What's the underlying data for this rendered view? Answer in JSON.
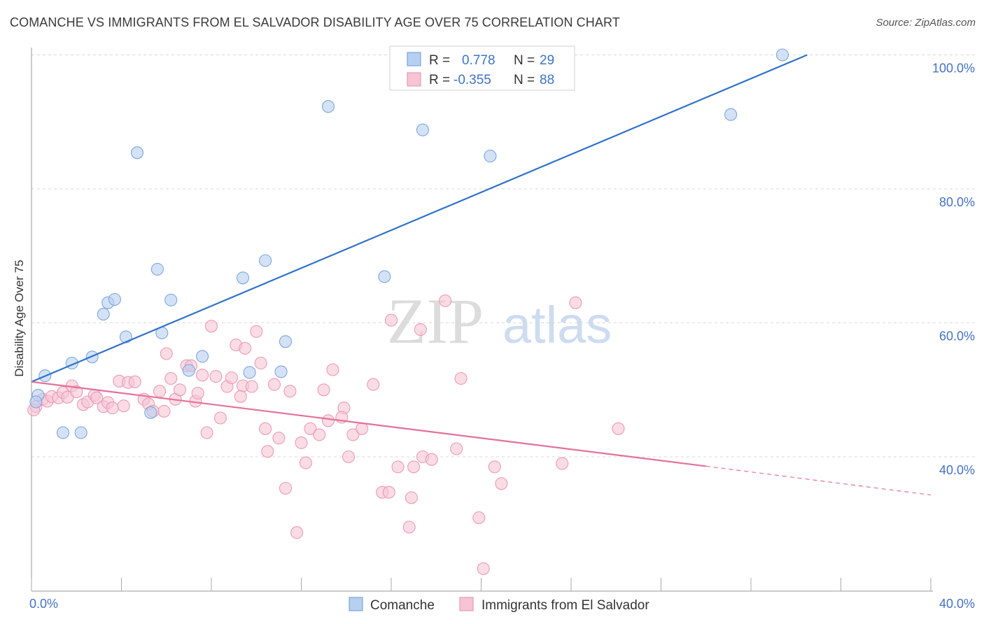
{
  "title": "COMANCHE VS IMMIGRANTS FROM EL SALVADOR DISABILITY AGE OVER 75 CORRELATION CHART",
  "source": "Source: ZipAtlas.com",
  "watermark": {
    "zip": "ZIP",
    "atlas": "atlas"
  },
  "colors": {
    "blue_line": "#2f72c8",
    "blue_fill": "#b7cff0",
    "blue_stroke": "#7da6dd",
    "pink_line": "#e5709a",
    "pink_fill": "#f6c4d4",
    "pink_stroke": "#ec9ab6",
    "grid": "#d9d9d9",
    "tick_label": "#4472c4"
  },
  "legend": {
    "rows": [
      {
        "r_label": "R =",
        "r_value": "0.778",
        "n_label": "N =",
        "n_value": "29"
      },
      {
        "r_label": "R =",
        "r_value": "-0.355",
        "n_label": "N =",
        "n_value": "88"
      }
    ]
  },
  "bottom_legend": [
    "Comanche",
    "Immigrants from El Salvador"
  ],
  "chart_data": {
    "type": "scatter",
    "title": "COMANCHE VS IMMIGRANTS FROM EL SALVADOR DISABILITY AGE OVER 75 CORRELATION CHART",
    "xlabel": "",
    "ylabel": "Disability Age Over 75",
    "xlim": [
      0,
      40
    ],
    "ylim": [
      20,
      102
    ],
    "x_tick_labels": [
      "0.0%",
      "40.0%"
    ],
    "y_tick_labels": [
      "40.0%",
      "60.0%",
      "80.0%",
      "100.0%"
    ],
    "y_ticks": [
      40,
      60,
      80,
      100
    ],
    "grid": true,
    "legend_placement": "top-center",
    "series": [
      {
        "name": "Comanche",
        "r": 0.778,
        "n": 29,
        "trend": {
          "x": [
            0,
            34.5
          ],
          "y": [
            51.2,
            100
          ]
        },
        "points": [
          [
            0.3,
            49.2
          ],
          [
            0.6,
            52.1
          ],
          [
            1.8,
            54.0
          ],
          [
            2.7,
            54.9
          ],
          [
            3.2,
            61.3
          ],
          [
            3.4,
            63.0
          ],
          [
            3.7,
            63.5
          ],
          [
            4.2,
            57.9
          ],
          [
            4.7,
            85.4
          ],
          [
            5.3,
            46.6
          ],
          [
            5.6,
            68.0
          ],
          [
            5.8,
            58.5
          ],
          [
            6.2,
            63.4
          ],
          [
            7.0,
            52.9
          ],
          [
            7.6,
            55.0
          ],
          [
            9.4,
            66.7
          ],
          [
            9.7,
            52.6
          ],
          [
            10.4,
            69.3
          ],
          [
            11.1,
            52.7
          ],
          [
            11.3,
            57.2
          ],
          [
            13.2,
            92.3
          ],
          [
            15.7,
            66.9
          ],
          [
            17.4,
            88.8
          ],
          [
            20.4,
            84.9
          ],
          [
            31.1,
            91.1
          ],
          [
            33.4,
            100.0
          ],
          [
            1.4,
            43.6
          ],
          [
            2.2,
            43.6
          ],
          [
            0.2,
            48.2
          ]
        ]
      },
      {
        "name": "Immigrants from El Salvador",
        "r": -0.355,
        "n": 88,
        "trend": {
          "x": [
            0,
            30.0
          ],
          "y": [
            51.2,
            38.6
          ]
        },
        "trend_dashed": {
          "x": [
            30.0,
            40
          ],
          "y": [
            38.6,
            34.3
          ]
        },
        "points": [
          [
            0.2,
            47.5
          ],
          [
            0.5,
            48.6
          ],
          [
            0.7,
            48.3
          ],
          [
            0.9,
            49.0
          ],
          [
            1.2,
            48.8
          ],
          [
            1.4,
            49.6
          ],
          [
            1.6,
            48.9
          ],
          [
            1.8,
            50.6
          ],
          [
            2.0,
            49.7
          ],
          [
            2.3,
            47.8
          ],
          [
            2.5,
            48.2
          ],
          [
            2.8,
            49.2
          ],
          [
            2.9,
            48.8
          ],
          [
            3.2,
            47.5
          ],
          [
            3.4,
            48.1
          ],
          [
            3.6,
            47.3
          ],
          [
            3.9,
            51.3
          ],
          [
            4.1,
            47.6
          ],
          [
            4.3,
            51.1
          ],
          [
            4.6,
            51.2
          ],
          [
            5.0,
            48.6
          ],
          [
            5.2,
            47.9
          ],
          [
            5.4,
            46.8
          ],
          [
            5.7,
            49.8
          ],
          [
            5.9,
            46.8
          ],
          [
            6.0,
            55.4
          ],
          [
            6.2,
            51.7
          ],
          [
            6.4,
            48.6
          ],
          [
            6.6,
            50.0
          ],
          [
            6.9,
            53.6
          ],
          [
            7.1,
            53.6
          ],
          [
            7.3,
            48.3
          ],
          [
            7.6,
            52.2
          ],
          [
            7.8,
            43.6
          ],
          [
            8.0,
            59.5
          ],
          [
            8.2,
            52.0
          ],
          [
            8.4,
            45.8
          ],
          [
            8.7,
            50.5
          ],
          [
            8.9,
            51.8
          ],
          [
            9.1,
            56.7
          ],
          [
            9.4,
            50.6
          ],
          [
            9.5,
            56.2
          ],
          [
            9.8,
            50.5
          ],
          [
            10.0,
            58.7
          ],
          [
            10.2,
            54.0
          ],
          [
            10.4,
            44.2
          ],
          [
            10.5,
            40.8
          ],
          [
            10.8,
            50.8
          ],
          [
            11.0,
            42.8
          ],
          [
            11.3,
            35.3
          ],
          [
            11.5,
            49.8
          ],
          [
            11.8,
            28.7
          ],
          [
            12.0,
            42.1
          ],
          [
            12.2,
            39.1
          ],
          [
            12.4,
            44.2
          ],
          [
            12.8,
            43.3
          ],
          [
            13.0,
            50.0
          ],
          [
            13.2,
            45.4
          ],
          [
            13.4,
            53.0
          ],
          [
            13.9,
            47.3
          ],
          [
            13.8,
            45.9
          ],
          [
            14.3,
            43.3
          ],
          [
            14.7,
            44.2
          ],
          [
            15.2,
            50.8
          ],
          [
            15.6,
            34.7
          ],
          [
            15.9,
            34.7
          ],
          [
            16.0,
            60.4
          ],
          [
            16.3,
            38.5
          ],
          [
            16.8,
            29.5
          ],
          [
            16.9,
            33.9
          ],
          [
            17.0,
            38.5
          ],
          [
            17.3,
            59.0
          ],
          [
            17.4,
            40.0
          ],
          [
            17.8,
            39.6
          ],
          [
            18.4,
            63.3
          ],
          [
            18.9,
            41.2
          ],
          [
            19.1,
            51.7
          ],
          [
            19.9,
            30.9
          ],
          [
            20.1,
            23.3
          ],
          [
            20.6,
            38.5
          ],
          [
            20.9,
            36.0
          ],
          [
            23.6,
            39.0
          ],
          [
            24.2,
            63.0
          ],
          [
            26.1,
            44.2
          ],
          [
            14.1,
            40.0
          ],
          [
            9.3,
            49.0
          ],
          [
            7.4,
            49.5
          ],
          [
            0.1,
            47.0
          ]
        ]
      }
    ]
  }
}
